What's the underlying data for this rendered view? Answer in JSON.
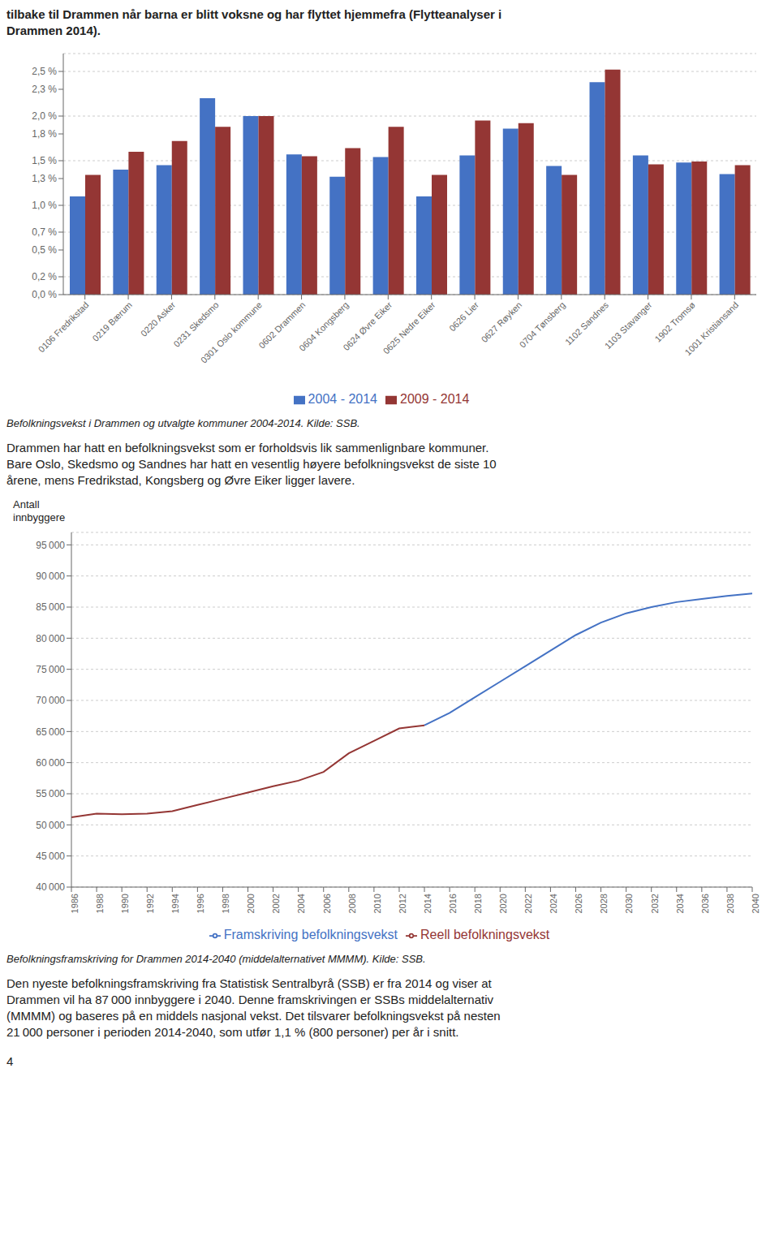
{
  "chart_data": [
    {
      "type": "bar",
      "intro": [
        "tilbake til Drammen når barna er blitt voksne og har flyttet hjemmefra (Flytteanalyser i",
        "Drammen 2014)."
      ],
      "categories": [
        "0106 Fredrikstad",
        "0219 Bærum",
        "0220 Asker",
        "0231 Skedsmo",
        "0301 Oslo kommune",
        "0602 Drammen",
        "0604 Kongsberg",
        "0624 Øvre Eiker",
        "0625 Nedre Eiker",
        "0626 Lier",
        "0627 Røyken",
        "0704 Tønsberg",
        "1102 Sandnes",
        "1103 Stavanger",
        "1902 Tromsø",
        "1001 Kristiansand"
      ],
      "series": [
        {
          "name": "2004 - 2014",
          "color": "#4472C4",
          "values": [
            1.1,
            1.4,
            1.45,
            2.2,
            2.0,
            1.57,
            1.32,
            1.54,
            1.1,
            1.56,
            1.86,
            1.44,
            2.38,
            1.56,
            1.48,
            1.35
          ]
        },
        {
          "name": "2009 - 2014",
          "color": "#943634",
          "values": [
            1.34,
            1.6,
            1.72,
            1.88,
            2.0,
            1.55,
            1.64,
            1.88,
            1.34,
            1.95,
            1.92,
            1.34,
            2.52,
            1.46,
            1.49,
            1.45
          ]
        }
      ],
      "ylim": [
        0,
        2.7
      ],
      "yticks": [
        {
          "value": 0.0,
          "label": "0,0 %"
        },
        {
          "value": 0.2,
          "label": "0,2 %"
        },
        {
          "value": 0.5,
          "label": "0,5 %"
        },
        {
          "value": 0.7,
          "label": "0,7 %"
        },
        {
          "value": 1.0,
          "label": "1,0 %"
        },
        {
          "value": 1.3,
          "label": "1,3 %"
        },
        {
          "value": 1.5,
          "label": "1,5 %"
        },
        {
          "value": 1.8,
          "label": "1,8 %"
        },
        {
          "value": 2.0,
          "label": "2,0 %"
        },
        {
          "value": 2.3,
          "label": "2,3 %"
        },
        {
          "value": 2.5,
          "label": "2,5 %"
        }
      ],
      "grid": true,
      "legend": "bottom",
      "caption": "Befolkningsvekst i Drammen og utvalgte kommuner 2004-2014. Kilde: SSB.",
      "paragraph": [
        "Drammen har hatt en befolkningsvekst som er forholdsvis lik sammenlignbare kommuner.",
        "Bare Oslo, Skedsmo og Sandnes har hatt en vesentlig høyere befolkningsvekst de siste 10",
        "årene, mens Fredrikstad, Kongsberg og Øvre Eiker ligger lavere."
      ]
    },
    {
      "type": "line",
      "y_label": "Antall\ninnbyggere",
      "x": [
        1986,
        1988,
        1990,
        1992,
        1994,
        1996,
        1998,
        2000,
        2002,
        2004,
        2006,
        2008,
        2010,
        2012,
        2014,
        2016,
        2018,
        2020,
        2022,
        2024,
        2026,
        2028,
        2030,
        2032,
        2034,
        2036,
        2038,
        2040
      ],
      "series": [
        {
          "name": "Reell befolkningsvekst",
          "color": "#943634",
          "values": [
            51200,
            51800,
            51700,
            51800,
            52200,
            53200,
            54200,
            55200,
            56200,
            57100,
            58500,
            61500,
            63500,
            65500,
            66000,
            null,
            null,
            null,
            null,
            null,
            null,
            null,
            null,
            null,
            null,
            null,
            null,
            null
          ]
        },
        {
          "name": "Framskriving befolkningsvekst",
          "color": "#4472C4",
          "values": [
            null,
            null,
            null,
            null,
            null,
            null,
            null,
            null,
            null,
            null,
            null,
            null,
            null,
            null,
            66000,
            68000,
            70500,
            73000,
            75500,
            78000,
            80500,
            82500,
            84000,
            85000,
            85800,
            86300,
            86800,
            87200
          ]
        }
      ],
      "xlim": [
        1986,
        2040
      ],
      "xticks": [
        1986,
        1988,
        1990,
        1992,
        1994,
        1996,
        1998,
        2000,
        2002,
        2004,
        2006,
        2008,
        2010,
        2012,
        2014,
        2016,
        2018,
        2020,
        2022,
        2024,
        2026,
        2028,
        2030,
        2032,
        2034,
        2036,
        2038,
        2040
      ],
      "ylim": [
        40000,
        97000
      ],
      "yticks": [
        {
          "value": 40000,
          "label": "40 000"
        },
        {
          "value": 45000,
          "label": "45 000"
        },
        {
          "value": 50000,
          "label": "50 000"
        },
        {
          "value": 55000,
          "label": "55 000"
        },
        {
          "value": 60000,
          "label": "60 000"
        },
        {
          "value": 65000,
          "label": "65 000"
        },
        {
          "value": 70000,
          "label": "70 000"
        },
        {
          "value": 75000,
          "label": "75 000"
        },
        {
          "value": 80000,
          "label": "80 000"
        },
        {
          "value": 85000,
          "label": "85 000"
        },
        {
          "value": 90000,
          "label": "90 000"
        },
        {
          "value": 95000,
          "label": "95 000"
        }
      ],
      "grid": true,
      "legend": "bottom",
      "caption": "Befolkningsframskriving for Drammen 2014-2040 (middelalternativet MMMM). Kilde: SSB.",
      "paragraph": [
        "Den nyeste befolkningsframskriving fra Statistisk Sentralbyrå (SSB) er fra 2014 og viser at",
        "Drammen vil ha 87 000 innbyggere i 2040. Denne framskrivingen er SSBs middelalternativ",
        "(MMMM) og baseres på en middels nasjonal vekst. Det tilsvarer befolkningsvekst på nesten",
        "21 000 personer i perioden 2014-2040, som utfør 1,1 % (800 personer) per år i snitt."
      ]
    }
  ],
  "page_number": "4"
}
